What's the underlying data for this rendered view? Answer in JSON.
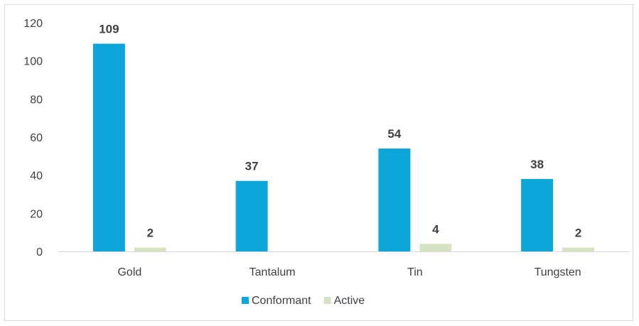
{
  "chart_data": {
    "type": "bar",
    "title": "",
    "xlabel": "",
    "ylabel": "",
    "categories": [
      "Gold",
      "Tantalum",
      "Tin",
      "Tungsten"
    ],
    "series": [
      {
        "name": "Conformant",
        "color": "#0ea5d8",
        "values": [
          109,
          37,
          54,
          38
        ],
        "labels": [
          "109",
          "37",
          "54",
          "38"
        ]
      },
      {
        "name": "Active",
        "color": "#d6e3c3",
        "values": [
          2,
          0,
          4,
          2
        ],
        "labels": [
          "2",
          "",
          "4",
          "2"
        ]
      }
    ],
    "ylim": [
      0,
      120
    ],
    "yticks": [
      0,
      20,
      40,
      60,
      80,
      100,
      120
    ],
    "ytick_labels": [
      "0",
      "20",
      "40",
      "60",
      "80",
      "100",
      "120"
    ],
    "grid": false,
    "legend_position": "bottom"
  }
}
